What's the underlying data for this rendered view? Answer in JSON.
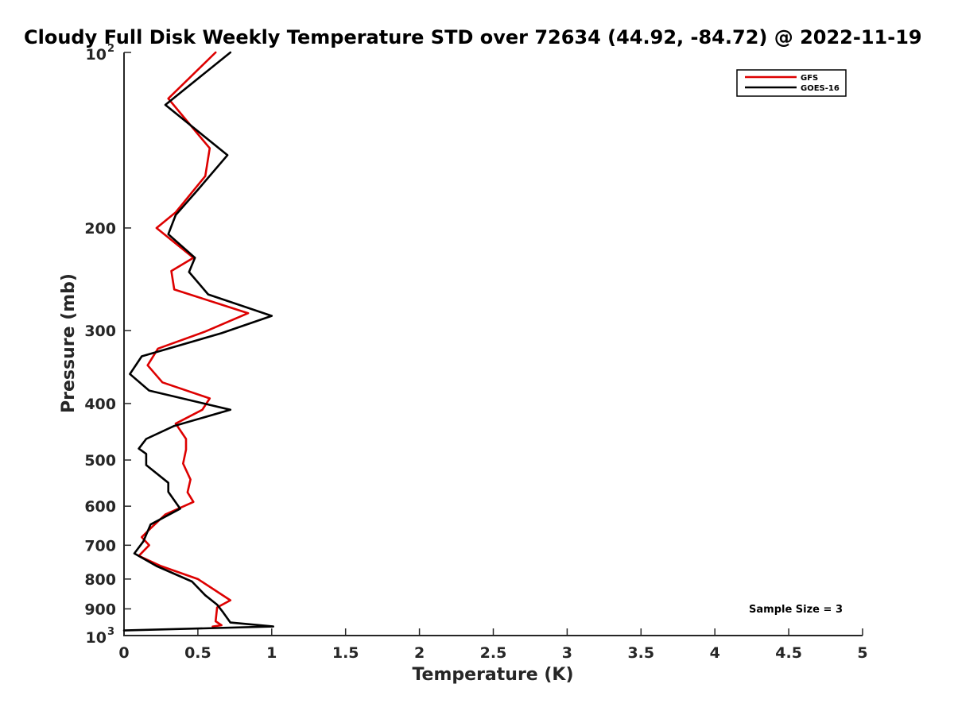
{
  "chart_data": {
    "type": "line",
    "title": "Cloudy Full Disk Weekly Temperature STD over 72634 (44.92, -84.72) @ 2022-11-19",
    "xlabel": "Temperature (K)",
    "ylabel": "Pressure (mb)",
    "xlim": [
      0,
      5
    ],
    "ylim": [
      100,
      1000
    ],
    "yscale": "log",
    "y_reversed": true,
    "grid": false,
    "legend_position": "top-right",
    "x_ticks": [
      "0",
      "0.5",
      "1",
      "1.5",
      "2",
      "2.5",
      "3",
      "3.5",
      "4",
      "4.5",
      "5"
    ],
    "y_ticks": [
      {
        "value": 100,
        "base": "10",
        "exp": "2"
      },
      {
        "value": 200,
        "label": "200"
      },
      {
        "value": 300,
        "label": "300"
      },
      {
        "value": 400,
        "label": "400"
      },
      {
        "value": 500,
        "label": "500"
      },
      {
        "value": 600,
        "label": "600"
      },
      {
        "value": 700,
        "label": "700"
      },
      {
        "value": 800,
        "label": "800"
      },
      {
        "value": 900,
        "label": "900"
      },
      {
        "value": 1000,
        "base": "10",
        "exp": "3"
      }
    ],
    "annotation": "Sample Size = 3",
    "series": [
      {
        "name": "GFS",
        "color": "#dd0000",
        "points": [
          [
            0.62,
            100
          ],
          [
            0.3,
            120
          ],
          [
            0.58,
            146
          ],
          [
            0.55,
            163
          ],
          [
            0.35,
            188
          ],
          [
            0.22,
            200
          ],
          [
            0.47,
            225
          ],
          [
            0.32,
            237
          ],
          [
            0.34,
            255
          ],
          [
            0.84,
            280
          ],
          [
            0.55,
            301
          ],
          [
            0.23,
            322
          ],
          [
            0.16,
            344
          ],
          [
            0.26,
            368
          ],
          [
            0.58,
            392
          ],
          [
            0.53,
            410
          ],
          [
            0.35,
            433
          ],
          [
            0.42,
            460
          ],
          [
            0.42,
            480
          ],
          [
            0.4,
            507
          ],
          [
            0.45,
            540
          ],
          [
            0.43,
            568
          ],
          [
            0.47,
            590
          ],
          [
            0.28,
            620
          ],
          [
            0.18,
            655
          ],
          [
            0.12,
            678
          ],
          [
            0.17,
            700
          ],
          [
            0.1,
            730
          ],
          [
            0.25,
            760
          ],
          [
            0.5,
            800
          ],
          [
            0.72,
            870
          ],
          [
            0.63,
            895
          ],
          [
            0.62,
            945
          ],
          [
            0.66,
            960
          ],
          [
            0.6,
            965
          ]
        ]
      },
      {
        "name": "GOES-16",
        "color": "#000000",
        "points": [
          [
            0.72,
            100
          ],
          [
            0.28,
            123
          ],
          [
            0.7,
            150
          ],
          [
            0.5,
            172
          ],
          [
            0.35,
            190
          ],
          [
            0.3,
            205
          ],
          [
            0.48,
            225
          ],
          [
            0.44,
            238
          ],
          [
            0.57,
            260
          ],
          [
            1.0,
            283
          ],
          [
            0.66,
            303
          ],
          [
            0.12,
            332
          ],
          [
            0.04,
            356
          ],
          [
            0.17,
            380
          ],
          [
            0.72,
            410
          ],
          [
            0.34,
            437
          ],
          [
            0.15,
            460
          ],
          [
            0.1,
            478
          ],
          [
            0.15,
            488
          ],
          [
            0.15,
            510
          ],
          [
            0.3,
            547
          ],
          [
            0.3,
            567
          ],
          [
            0.38,
            606
          ],
          [
            0.18,
            645
          ],
          [
            0.13,
            690
          ],
          [
            0.07,
            723
          ],
          [
            0.22,
            760
          ],
          [
            0.46,
            808
          ],
          [
            0.55,
            853
          ],
          [
            0.63,
            885
          ],
          [
            0.67,
            912
          ],
          [
            0.72,
            950
          ],
          [
            1.01,
            965
          ],
          [
            0.0,
            980
          ]
        ]
      }
    ]
  }
}
